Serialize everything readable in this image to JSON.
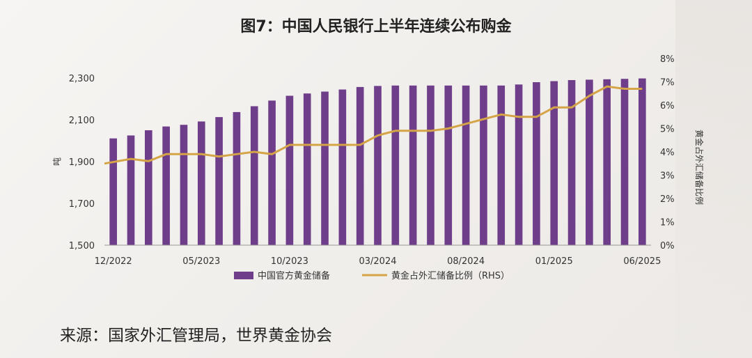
{
  "chart_data": {
    "type": "bar+line",
    "title": "图7：中国人民银行上半年连续公布购金",
    "ylabel_left": "吨",
    "ylabel_right": "黄金占外汇储备比例",
    "ylim_left": [
      1500,
      2300
    ],
    "yticks_left": [
      "1,500",
      "1,700",
      "1,900",
      "2,100",
      "2,300"
    ],
    "ylim_right": [
      0,
      8
    ],
    "yticks_right": [
      "0%",
      "1%",
      "2%",
      "3%",
      "4%",
      "5%",
      "6%",
      "7%",
      "8%"
    ],
    "x_tick_labels": [
      "12/2022",
      "05/2023",
      "10/2023",
      "03/2024",
      "08/2024",
      "01/2025",
      "06/2025"
    ],
    "x_tick_indices": [
      0,
      5,
      10,
      15,
      20,
      25,
      30
    ],
    "categories": [
      "12/2022",
      "01/2023",
      "02/2023",
      "03/2023",
      "04/2023",
      "05/2023",
      "06/2023",
      "07/2023",
      "08/2023",
      "09/2023",
      "10/2023",
      "11/2023",
      "12/2023",
      "01/2024",
      "02/2024",
      "03/2024",
      "04/2024",
      "05/2024",
      "06/2024",
      "07/2024",
      "08/2024",
      "09/2024",
      "10/2024",
      "11/2024",
      "12/2024",
      "01/2025",
      "02/2025",
      "03/2025",
      "04/2025",
      "05/2025",
      "06/2025"
    ],
    "series": [
      {
        "name": "中国官方黄金储备",
        "kind": "bar",
        "color": "#6e3e8a",
        "values": [
          2011,
          2025,
          2050,
          2068,
          2076,
          2092,
          2113,
          2137,
          2165,
          2192,
          2215,
          2226,
          2235,
          2245,
          2257,
          2262,
          2264,
          2264,
          2264,
          2264,
          2264,
          2264,
          2264,
          2269,
          2280,
          2285,
          2290,
          2292,
          2294,
          2296,
          2298
        ]
      },
      {
        "name": "黄金占外汇储备比例（RHS）",
        "kind": "line",
        "color": "#d4a447",
        "values": [
          3.5,
          3.7,
          3.6,
          3.9,
          3.9,
          3.9,
          3.8,
          3.9,
          4.0,
          3.9,
          4.3,
          4.3,
          4.3,
          4.3,
          4.3,
          4.7,
          4.9,
          4.9,
          4.9,
          5.0,
          5.2,
          5.4,
          5.6,
          5.5,
          5.5,
          5.9,
          5.9,
          6.4,
          6.8,
          6.7,
          6.7
        ]
      }
    ],
    "legend_position": "bottom"
  },
  "source_text": "来源：国家外汇管理局，世界黄金协会"
}
